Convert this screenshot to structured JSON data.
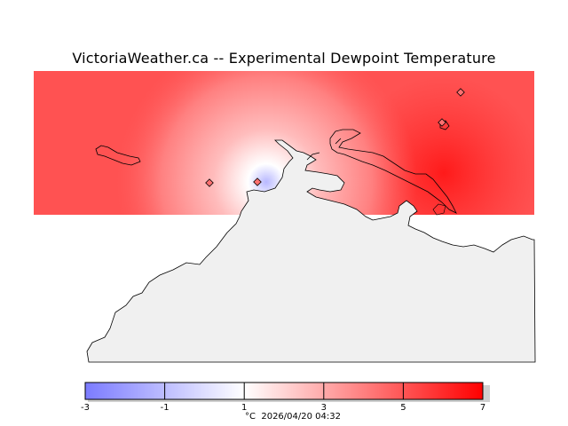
{
  "title": "VictoriaWeather.ca -- Experimental Dewpoint Temperature",
  "colorbar": {
    "min": -3,
    "max": 7,
    "ticks": [
      "-3",
      "-1",
      "1",
      "3",
      "5",
      "7"
    ],
    "tick_values": [
      -3,
      -1,
      1,
      3,
      5,
      7
    ],
    "colors": {
      "low": "#7b7bff",
      "mid": "#ffffff",
      "high": "#ff0000"
    }
  },
  "footer": {
    "unit": "°C",
    "timestamp": "2026/04/20 04:32"
  },
  "map": {
    "land_color": "#f0f0f0",
    "stations": [
      "station-west",
      "station-victoria",
      "station-ne-1",
      "station-ne-2"
    ]
  }
}
